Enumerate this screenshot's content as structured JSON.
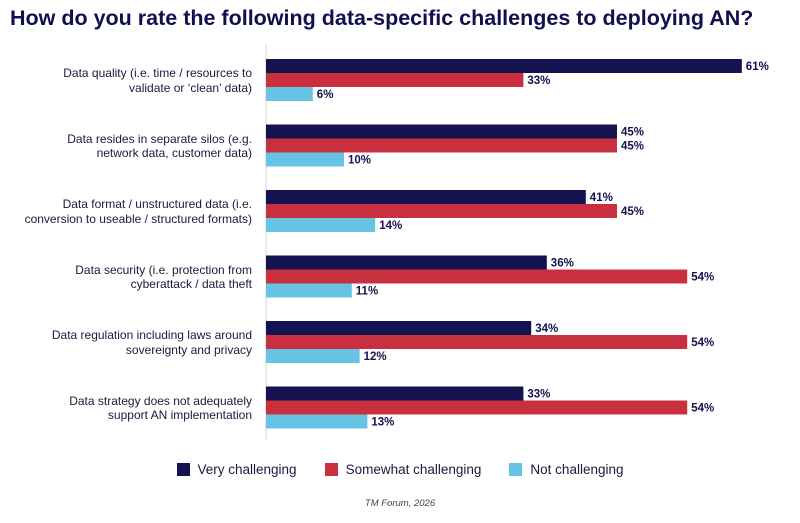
{
  "chart_data": {
    "type": "bar",
    "orientation": "horizontal",
    "title": "How do you rate the following data-specific challenges to deploying AN?",
    "categories": [
      "Data quality (i.e. time / resources to validate or ‘clean’ data)",
      "Data resides in separate silos (e.g. network data, customer data)",
      "Data format / unstructured data (i.e. conversion to useable / structured formats)",
      "Data security (i.e. protection from cyberattack / data theft",
      "Data regulation including laws around sovereignty and privacy",
      "Data strategy does not adequately support AN implementation"
    ],
    "category_lines": [
      [
        "Data quality (i.e. time / resources to",
        "validate or ‘clean’ data)"
      ],
      [
        "Data resides in separate silos (e.g.",
        "network data, customer data)"
      ],
      [
        "Data format / unstructured data (i.e.",
        "conversion to useable / structured formats)"
      ],
      [
        "Data security (i.e. protection from",
        "cyberattack / data theft"
      ],
      [
        "Data regulation including laws around",
        "sovereignty and privacy"
      ],
      [
        "Data strategy does not adequately",
        "support AN implementation"
      ]
    ],
    "series": [
      {
        "name": "Very challenging",
        "color": "#14124f",
        "values": [
          61,
          45,
          41,
          36,
          34,
          33
        ]
      },
      {
        "name": "Somewhat challenging",
        "color": "#c8303f",
        "values": [
          33,
          45,
          45,
          54,
          54,
          54
        ]
      },
      {
        "name": "Not challenging",
        "color": "#67c3e3",
        "values": [
          6,
          10,
          14,
          11,
          12,
          13
        ]
      }
    ],
    "value_suffix": "%",
    "xlim": [
      0,
      70
    ],
    "legend_position": "bottom",
    "source": "TM Forum, 2026"
  }
}
